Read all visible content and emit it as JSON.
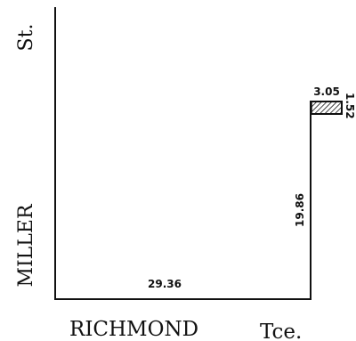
{
  "streets": {
    "west_name": "MILLER",
    "west_suffix": "St.",
    "south_name": "RICHMOND",
    "south_suffix": "Tce."
  },
  "dimensions": {
    "bottom_frontage": "29.36",
    "right_side": "19.86",
    "notch_width": "3.05",
    "notch_depth": "1.52"
  },
  "colors": {
    "line": "#111111",
    "background": "#ffffff"
  }
}
